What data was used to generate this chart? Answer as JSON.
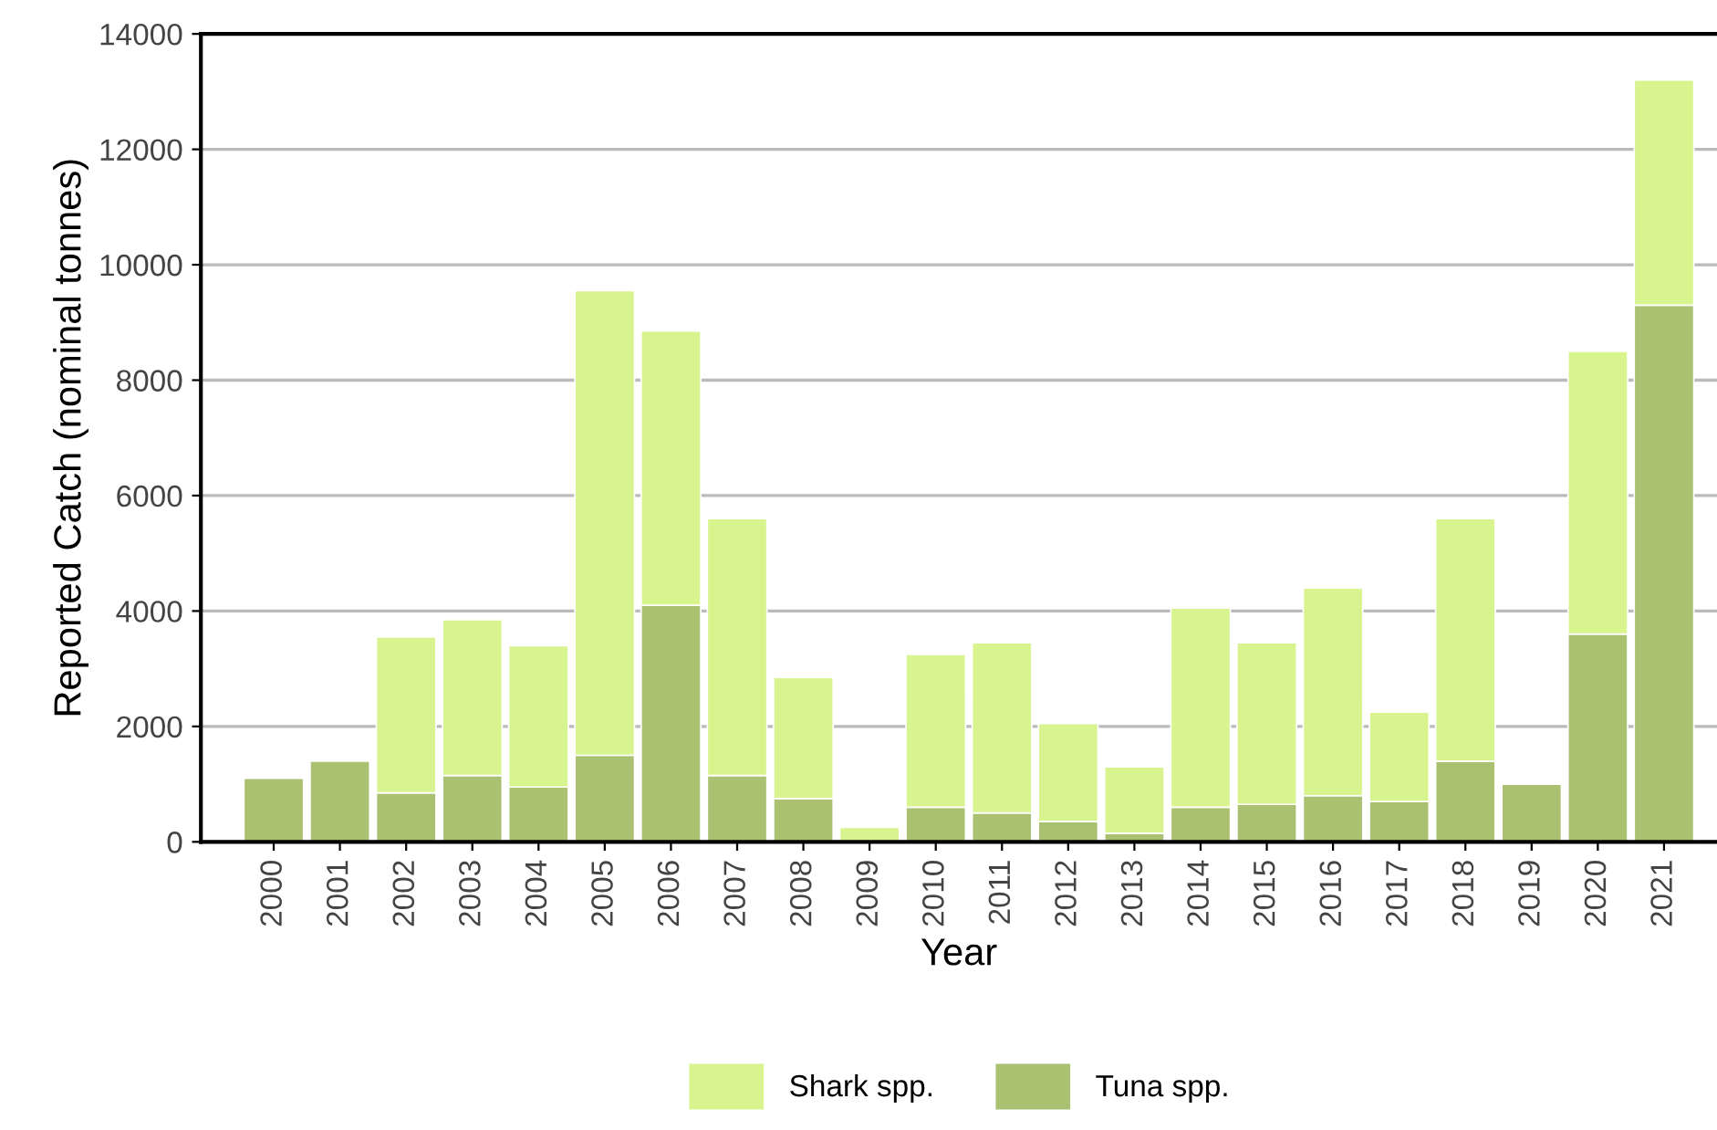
{
  "chart_data": {
    "type": "bar",
    "stacked": true,
    "xlabel": "Year",
    "ylabel": "Reported Catch (nominal tonnes)",
    "categories": [
      "2000",
      "2001",
      "2002",
      "2003",
      "2004",
      "2005",
      "2006",
      "2007",
      "2008",
      "2009",
      "2010",
      "2011",
      "2012",
      "2013",
      "2014",
      "2015",
      "2016",
      "2017",
      "2018",
      "2019",
      "2020",
      "2021"
    ],
    "series": [
      {
        "name": "Tuna spp.",
        "color": "#a9c171",
        "values": [
          1100,
          1400,
          850,
          1150,
          950,
          1500,
          4100,
          1150,
          750,
          null,
          600,
          500,
          350,
          150,
          600,
          650,
          800,
          700,
          1400,
          1000,
          3600,
          9300
        ]
      },
      {
        "name": "Shark spp.",
        "color": "#d7f48f",
        "values": [
          null,
          null,
          2700,
          2700,
          2450,
          8050,
          4750,
          4450,
          2100,
          250,
          2650,
          2950,
          1700,
          1150,
          3450,
          2800,
          3600,
          1550,
          4200,
          null,
          4900,
          3900
        ]
      }
    ],
    "ylim": [
      0,
      14000
    ],
    "yticks": [
      0,
      2000,
      4000,
      6000,
      8000,
      10000,
      12000,
      14000
    ],
    "grid": "y",
    "legend": "bottom"
  }
}
